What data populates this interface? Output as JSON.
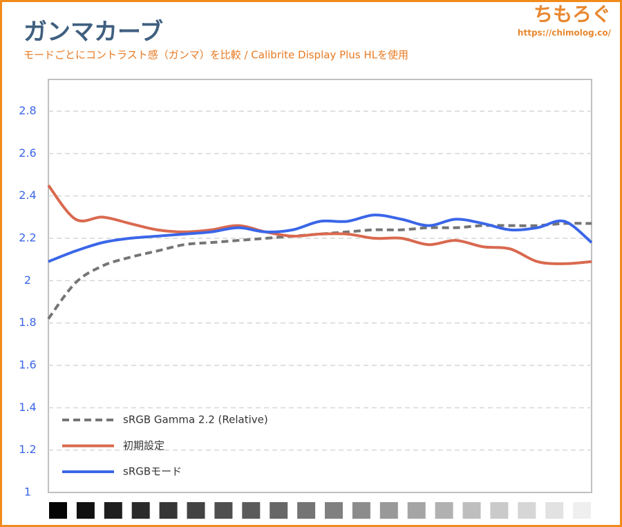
{
  "chart_data": {
    "type": "line",
    "title": "ガンマカーブ",
    "subtitle": "モードごとにコントラスト感（ガンマ）を比較 / Calibrite Display Plus HLを使用",
    "logo": "ちもろぐ",
    "logo_url": "https://chimolog.co/",
    "categories": [
      null,
      null,
      null,
      null,
      null,
      null,
      null,
      null,
      null,
      null,
      null,
      null,
      null,
      null,
      null,
      null,
      null,
      null,
      null,
      null,
      null
    ],
    "series": [
      {
        "name": "sRGB Gamma 2.2 (Relative)",
        "color": "#757575",
        "dash": true,
        "values": [
          1.82,
          1.99,
          2.07,
          2.11,
          2.14,
          2.17,
          2.18,
          2.19,
          2.2,
          2.21,
          2.22,
          2.23,
          2.24,
          2.24,
          2.25,
          2.25,
          2.26,
          2.26,
          2.26,
          2.27,
          2.27
        ]
      },
      {
        "name": "初期設定",
        "color": "#d9694f",
        "dash": false,
        "values": [
          2.45,
          2.29,
          2.3,
          2.27,
          2.24,
          2.23,
          2.24,
          2.26,
          2.23,
          2.21,
          2.22,
          2.22,
          2.2,
          2.2,
          2.17,
          2.19,
          2.16,
          2.15,
          2.09,
          2.08,
          2.09
        ]
      },
      {
        "name": "sRGBモード",
        "color": "#3a66e8",
        "dash": false,
        "values": [
          2.09,
          2.14,
          2.18,
          2.2,
          2.21,
          2.22,
          2.23,
          2.25,
          2.23,
          2.24,
          2.28,
          2.28,
          2.31,
          2.29,
          2.26,
          2.29,
          2.27,
          2.24,
          2.25,
          2.28,
          2.18
        ]
      }
    ],
    "ylim": [
      1,
      2.95
    ],
    "yticks": [
      1,
      1.2,
      1.4,
      1.6,
      1.8,
      2,
      2.2,
      2.4,
      2.6,
      2.8
    ],
    "grid": true,
    "legend": "lower left"
  }
}
